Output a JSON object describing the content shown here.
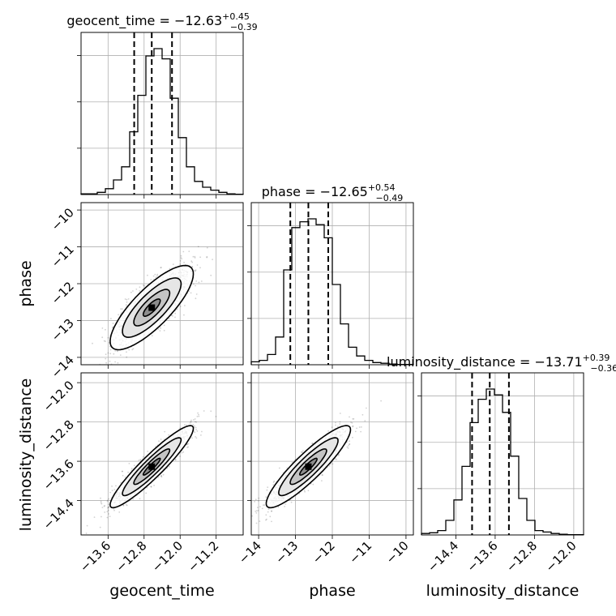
{
  "chart_data": {
    "type": "corner",
    "parameters": [
      "geocent_time",
      "phase",
      "luminosity_distance"
    ],
    "axis_labels": {
      "geocent_time": "geocent_time",
      "phase": "phase",
      "luminosity_distance": "luminosity_distance"
    },
    "titles": [
      {
        "param": "geocent_time",
        "text": "geocent_time = −12.63",
        "upper": "+0.45",
        "lower": "−0.39"
      },
      {
        "param": "phase",
        "text": "phase = −12.65",
        "upper": "+0.54",
        "lower": "−0.49"
      },
      {
        "param": "luminosity_distance",
        "text": "luminosity_distance = −13.71",
        "upper": "+0.39",
        "lower": "−0.36"
      }
    ],
    "ranges": {
      "geocent_time": [
        -14.2,
        -10.6
      ],
      "phase": [
        -14.2,
        -9.8
      ],
      "luminosity_distance": [
        -15.1,
        -11.8
      ]
    },
    "ticks": {
      "geocent_time": {
        "values": [
          -13.6,
          -12.8,
          -12.0,
          -11.2
        ],
        "labels": [
          "−13.6",
          "−12.8",
          "−12.0",
          "−11.2"
        ]
      },
      "phase": {
        "values": [
          -14,
          -13,
          -12,
          -11,
          -10
        ],
        "labels": [
          "−14",
          "−13",
          "−12",
          "−11",
          "−10"
        ]
      },
      "luminosity_distance": {
        "values": [
          -14.4,
          -13.6,
          -12.8,
          -12.0
        ],
        "labels": [
          "−14.4",
          "−13.6",
          "−12.8",
          "−12.0"
        ]
      }
    },
    "quantiles": {
      "geocent_time": [
        -13.02,
        -12.63,
        -12.18
      ],
      "phase": [
        -13.14,
        -12.65,
        -12.11
      ],
      "luminosity_distance": [
        -14.07,
        -13.71,
        -13.32
      ]
    },
    "histograms": {
      "geocent_time": {
        "bins": [
          -14.2,
          -14.02,
          -13.84,
          -13.66,
          -13.48,
          -13.3,
          -13.12,
          -12.94,
          -12.76,
          -12.58,
          -12.4,
          -12.22,
          -12.04,
          -11.86,
          -11.68,
          -11.5,
          -11.32,
          -11.14,
          -10.96,
          -10.78,
          -10.6
        ],
        "counts": [
          0.5,
          0.5,
          1.5,
          4,
          10,
          19,
          43,
          68,
          95,
          100,
          93,
          66,
          39,
          19,
          9,
          5,
          3,
          1.5,
          0.5,
          0.2
        ]
      },
      "phase": {
        "bins": [
          -14.2,
          -13.98,
          -13.76,
          -13.54,
          -13.32,
          -13.1,
          -12.88,
          -12.66,
          -12.44,
          -12.22,
          -12.0,
          -11.78,
          -11.56,
          -11.34,
          -11.12,
          -10.9,
          -10.68,
          -10.46,
          -10.24,
          -10.02,
          -9.8
        ],
        "counts": [
          2,
          3,
          7,
          19,
          65,
          94,
          98,
          100,
          96,
          87,
          55,
          28,
          12,
          6,
          3,
          1.5,
          1,
          0.5,
          0.2,
          0.2
        ]
      },
      "luminosity_distance": {
        "bins": [
          -15.1,
          -14.935,
          -14.77,
          -14.605,
          -14.44,
          -14.275,
          -14.11,
          -13.945,
          -13.78,
          -13.615,
          -13.45,
          -13.285,
          -13.12,
          -12.955,
          -12.79,
          -12.625,
          -12.46,
          -12.295,
          -12.13,
          -11.965,
          -11.8
        ],
        "counts": [
          1,
          1.5,
          3,
          10,
          24,
          47,
          77,
          93,
          100,
          96,
          84,
          54,
          25,
          10,
          3,
          2,
          1,
          0.5,
          0.2,
          0.2
        ]
      }
    },
    "pairs": [
      {
        "x": "geocent_time",
        "y": "phase",
        "center": [
          -12.63,
          -12.65
        ],
        "sx": 0.42,
        "sy": 0.52,
        "rho": 0.8
      },
      {
        "x": "geocent_time",
        "y": "luminosity_distance",
        "center": [
          -12.63,
          -13.71
        ],
        "sx": 0.42,
        "sy": 0.38,
        "rho": 0.93
      },
      {
        "x": "phase",
        "y": "luminosity_distance",
        "center": [
          -12.65,
          -13.71
        ],
        "sx": 0.52,
        "sy": 0.38,
        "rho": 0.9
      }
    ],
    "grid": true
  }
}
